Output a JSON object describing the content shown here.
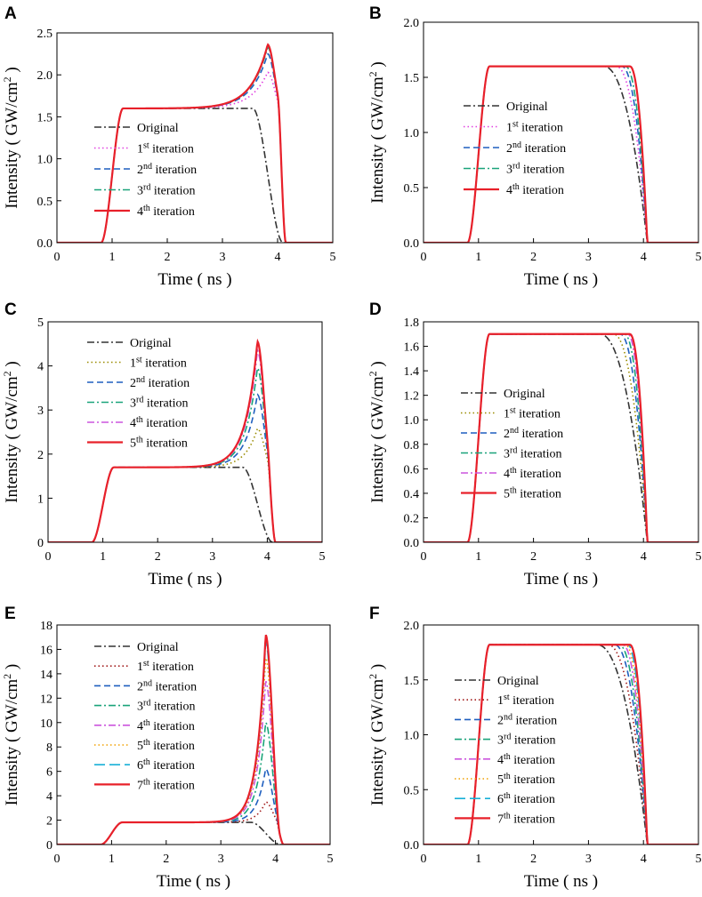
{
  "chart_data": [
    {
      "panel": "A",
      "type": "line",
      "xlabel": "Time ( ns )",
      "ylabel": "Intensity ( GW/cm^2 )",
      "xlim": [
        0,
        5
      ],
      "ylim": [
        0,
        2.5
      ],
      "xticks": [
        0,
        1,
        2,
        3,
        4,
        5
      ],
      "yticks": [
        0.0,
        0.5,
        1.0,
        1.5,
        2.0,
        2.5
      ],
      "yticklabels": [
        "0.0",
        "0.5",
        "1.0",
        "1.5",
        "2.0",
        "2.5"
      ],
      "plateau": 1.6,
      "series": [
        {
          "name": "Original",
          "base": "",
          "sup": "",
          "rest": "Original",
          "color": "#333333",
          "dash": "dashdot",
          "peak": 1.6,
          "width": 0.3
        },
        {
          "name": "1st iteration",
          "base": "1",
          "sup": "st",
          "rest": " iteration",
          "color": "#e040e0",
          "dash": "dot",
          "peak": 2.03,
          "width": 0.3
        },
        {
          "name": "2nd iteration",
          "base": "2",
          "sup": "nd",
          "rest": " iteration",
          "color": "#1f5fbf",
          "dash": "dash",
          "peak": 2.25,
          "width": 0.3
        },
        {
          "name": "3rd iteration",
          "base": "3",
          "sup": "rd",
          "rest": " iteration",
          "color": "#1aa37a",
          "dash": "dashdot",
          "peak": 2.33,
          "width": 0.3
        },
        {
          "name": "4th iteration",
          "base": "4",
          "sup": "th",
          "rest": " iteration",
          "color": "#e8202a",
          "dash": "solid",
          "peak": 2.36,
          "width": 0.3
        }
      ]
    },
    {
      "panel": "B",
      "type": "line",
      "xlabel": "Time ( ns )",
      "ylabel": "Intensity ( GW/cm^2 )",
      "xlim": [
        0,
        5
      ],
      "ylim": [
        0,
        2.0
      ],
      "xticks": [
        0,
        1,
        2,
        3,
        4,
        5
      ],
      "yticks": [
        0.0,
        0.5,
        1.0,
        1.5,
        2.0
      ],
      "yticklabels": [
        "0.0",
        "0.5",
        "1.0",
        "1.5",
        "2.0"
      ],
      "plateau": 1.6,
      "series": [
        {
          "name": "Original",
          "base": "",
          "sup": "",
          "rest": "Original",
          "color": "#333333",
          "dash": "dashdot",
          "w": 0.78
        },
        {
          "name": "1st iteration",
          "base": "1",
          "sup": "st",
          "rest": " iteration",
          "color": "#e040e0",
          "dash": "dot",
          "w": 0.55
        },
        {
          "name": "2nd iteration",
          "base": "2",
          "sup": "nd",
          "rest": " iteration",
          "color": "#1f5fbf",
          "dash": "dash",
          "w": 0.45
        },
        {
          "name": "3rd iteration",
          "base": "3",
          "sup": "rd",
          "rest": " iteration",
          "color": "#1aa37a",
          "dash": "dashdot",
          "w": 0.38
        },
        {
          "name": "4th iteration",
          "base": "4",
          "sup": "th",
          "rest": " iteration",
          "color": "#e8202a",
          "dash": "solid",
          "w": 0.3
        }
      ]
    },
    {
      "panel": "C",
      "type": "line",
      "xlabel": "Time ( ns )",
      "ylabel": "Intensity ( GW/cm^2 )",
      "xlim": [
        0,
        5
      ],
      "ylim": [
        0,
        5
      ],
      "xticks": [
        0,
        1,
        2,
        3,
        4,
        5
      ],
      "yticks": [
        0,
        1,
        2,
        3,
        4,
        5
      ],
      "yticklabels": [
        "0",
        "1",
        "2",
        "3",
        "4",
        "5"
      ],
      "plateau": 1.7,
      "series": [
        {
          "name": "Original",
          "base": "",
          "sup": "",
          "rest": "Original",
          "color": "#333333",
          "dash": "dashdot",
          "peak": 1.7,
          "width": 0.22
        },
        {
          "name": "1st iteration",
          "base": "1",
          "sup": "st",
          "rest": " iteration",
          "color": "#9a8c00",
          "dash": "dot",
          "peak": 2.58,
          "width": 0.22
        },
        {
          "name": "2nd iteration",
          "base": "2",
          "sup": "nd",
          "rest": " iteration",
          "color": "#1f5fbf",
          "dash": "dash",
          "peak": 3.35,
          "width": 0.22
        },
        {
          "name": "3rd iteration",
          "base": "3",
          "sup": "rd",
          "rest": " iteration",
          "color": "#1aa37a",
          "dash": "dashdot",
          "peak": 3.95,
          "width": 0.22
        },
        {
          "name": "4th iteration",
          "base": "4",
          "sup": "th",
          "rest": " iteration",
          "color": "#cc55dd",
          "dash": "dashdot",
          "peak": 4.35,
          "width": 0.22
        },
        {
          "name": "5th iteration",
          "base": "5",
          "sup": "th",
          "rest": " iteration",
          "color": "#e8202a",
          "dash": "solid",
          "peak": 4.55,
          "width": 0.22
        }
      ]
    },
    {
      "panel": "D",
      "type": "line",
      "xlabel": "Time ( ns )",
      "ylabel": "Intensity ( GW/cm^2 )",
      "xlim": [
        0,
        5
      ],
      "ylim": [
        0,
        1.8
      ],
      "xticks": [
        0,
        1,
        2,
        3,
        4,
        5
      ],
      "yticks": [
        0.0,
        0.2,
        0.4,
        0.6,
        0.8,
        1.0,
        1.2,
        1.4,
        1.6,
        1.8
      ],
      "yticklabels": [
        "0.0",
        "0.2",
        "0.4",
        "0.6",
        "0.8",
        "1.0",
        "1.2",
        "1.4",
        "1.6",
        "1.8"
      ],
      "plateau": 1.7,
      "series": [
        {
          "name": "Original",
          "base": "",
          "sup": "",
          "rest": "Original",
          "color": "#333333",
          "dash": "dashdot",
          "w": 0.85
        },
        {
          "name": "1st iteration",
          "base": "1",
          "sup": "st",
          "rest": " iteration",
          "color": "#9a8c00",
          "dash": "dot",
          "w": 0.6
        },
        {
          "name": "2nd iteration",
          "base": "2",
          "sup": "nd",
          "rest": " iteration",
          "color": "#1f5fbf",
          "dash": "dash",
          "w": 0.48
        },
        {
          "name": "3rd iteration",
          "base": "3",
          "sup": "rd",
          "rest": " iteration",
          "color": "#1aa37a",
          "dash": "dashdot",
          "w": 0.4
        },
        {
          "name": "4th iteration",
          "base": "4",
          "sup": "th",
          "rest": " iteration",
          "color": "#cc55dd",
          "dash": "dashdot",
          "w": 0.34
        },
        {
          "name": "5th iteration",
          "base": "5",
          "sup": "th",
          "rest": " iteration",
          "color": "#e8202a",
          "dash": "solid",
          "w": 0.3
        }
      ]
    },
    {
      "panel": "E",
      "type": "line",
      "xlabel": "Time ( ns )",
      "ylabel": "Intensity ( GW/cm^2 )",
      "xlim": [
        0,
        5
      ],
      "ylim": [
        0,
        18
      ],
      "xticks": [
        0,
        1,
        2,
        3,
        4,
        5
      ],
      "yticks": [
        0,
        2,
        4,
        6,
        8,
        10,
        12,
        14,
        16,
        18
      ],
      "yticklabels": [
        "0",
        "2",
        "4",
        "6",
        "8",
        "10",
        "12",
        "14",
        "16",
        "18"
      ],
      "plateau": 1.82,
      "series": [
        {
          "name": "Original",
          "base": "",
          "sup": "",
          "rest": "Original",
          "color": "#333333",
          "dash": "dashdot",
          "peak": 1.82,
          "width": 0.16
        },
        {
          "name": "1st iteration",
          "base": "1",
          "sup": "st",
          "rest": " iteration",
          "color": "#a01818",
          "dash": "dot",
          "peak": 3.5,
          "width": 0.16
        },
        {
          "name": "2nd iteration",
          "base": "2",
          "sup": "nd",
          "rest": " iteration",
          "color": "#1f5fbf",
          "dash": "dash",
          "peak": 6.2,
          "width": 0.16
        },
        {
          "name": "3rd iteration",
          "base": "3",
          "sup": "rd",
          "rest": " iteration",
          "color": "#1aa37a",
          "dash": "dashdot",
          "peak": 10.0,
          "width": 0.16
        },
        {
          "name": "4th iteration",
          "base": "4",
          "sup": "th",
          "rest": " iteration",
          "color": "#cc55dd",
          "dash": "dashdot",
          "peak": 13.4,
          "width": 0.16
        },
        {
          "name": "5th iteration",
          "base": "5",
          "sup": "th",
          "rest": " iteration",
          "color": "#f0a000",
          "dash": "dot",
          "peak": 15.3,
          "width": 0.16
        },
        {
          "name": "6th iteration",
          "base": "6",
          "sup": "th",
          "rest": " iteration",
          "color": "#18b0d8",
          "dash": "longdash",
          "peak": 16.6,
          "width": 0.16
        },
        {
          "name": "7th iteration",
          "base": "7",
          "sup": "th",
          "rest": " iteration",
          "color": "#e8202a",
          "dash": "solid",
          "peak": 17.2,
          "width": 0.16
        }
      ]
    },
    {
      "panel": "F",
      "type": "line",
      "xlabel": "Time ( ns )",
      "ylabel": "Intensity ( GW/cm^2 )",
      "xlim": [
        0,
        5
      ],
      "ylim": [
        0,
        2.0
      ],
      "xticks": [
        0,
        1,
        2,
        3,
        4,
        5
      ],
      "yticks": [
        0.0,
        0.5,
        1.0,
        1.5,
        2.0
      ],
      "yticklabels": [
        "0.0",
        "0.5",
        "1.0",
        "1.5",
        "2.0"
      ],
      "plateau": 1.82,
      "series": [
        {
          "name": "Original",
          "base": "",
          "sup": "",
          "rest": "Original",
          "color": "#333333",
          "dash": "dashdot",
          "w": 0.9
        },
        {
          "name": "1st iteration",
          "base": "1",
          "sup": "st",
          "rest": " iteration",
          "color": "#a01818",
          "dash": "dot",
          "w": 0.7
        },
        {
          "name": "2nd iteration",
          "base": "2",
          "sup": "nd",
          "rest": " iteration",
          "color": "#1f5fbf",
          "dash": "dash",
          "w": 0.58
        },
        {
          "name": "3rd iteration",
          "base": "3",
          "sup": "rd",
          "rest": " iteration",
          "color": "#1aa37a",
          "dash": "dashdot",
          "w": 0.5
        },
        {
          "name": "4th iteration",
          "base": "4",
          "sup": "th",
          "rest": " iteration",
          "color": "#cc55dd",
          "dash": "dashdot",
          "w": 0.43
        },
        {
          "name": "5th iteration",
          "base": "5",
          "sup": "th",
          "rest": " iteration",
          "color": "#f0a000",
          "dash": "dot",
          "w": 0.38
        },
        {
          "name": "6th iteration",
          "base": "6",
          "sup": "th",
          "rest": " iteration",
          "color": "#18b0d8",
          "dash": "longdash",
          "w": 0.34
        },
        {
          "name": "7th iteration",
          "base": "7",
          "sup": "th",
          "rest": " iteration",
          "color": "#e8202a",
          "dash": "solid",
          "w": 0.3
        }
      ]
    }
  ]
}
